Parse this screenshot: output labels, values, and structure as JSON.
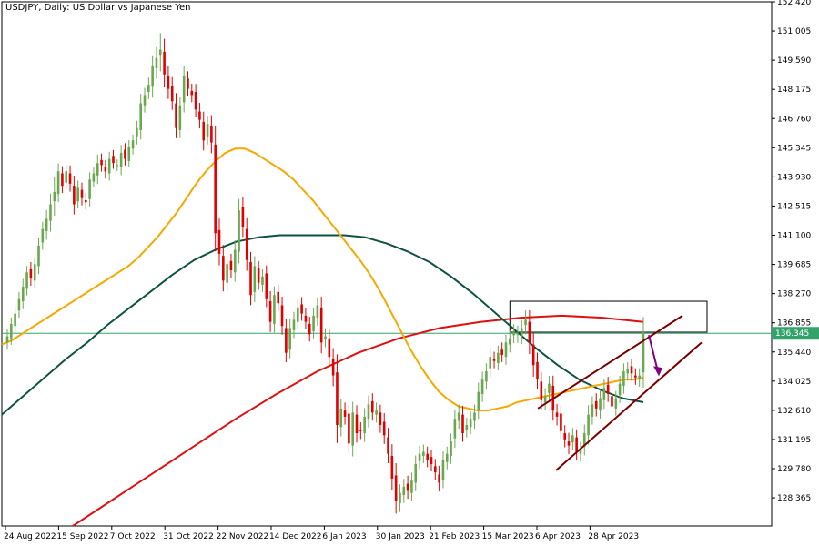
{
  "chart_data": {
    "type": "candlestick",
    "title": "USDJPY, Daily:  US Dollar vs Japanese Yen",
    "ylim": [
      127.0,
      152.42
    ],
    "y_ticks": [
      "152.420",
      "151.005",
      "149.590",
      "148.175",
      "146.760",
      "145.345",
      "143.930",
      "142.515",
      "141.100",
      "139.685",
      "138.270",
      "136.855",
      "135.440",
      "134.025",
      "132.610",
      "131.195",
      "129.780",
      "128.365"
    ],
    "x_ticks": [
      "24 Aug 2022",
      "15 Sep 2022",
      "7 Oct 2022",
      "31 Oct 2022",
      "22 Nov 2022",
      "14 Dec 2022",
      "6 Jan 2023",
      "30 Jan 2023",
      "21 Feb 2023",
      "15 Mar 2023",
      "6 Apr 2023",
      "28 Apr 2023"
    ],
    "current_price": "136.345",
    "horizontal_line_value": 136.345,
    "colors": {
      "bull": "#6aa84f",
      "bear": "#e00000",
      "ma_fast": "#f5a800",
      "ma_mid": "#0f5244",
      "ma_slow": "#dd1111",
      "hline": "#33a36b",
      "channel": "#7a0000",
      "arrow": "#800080",
      "box": "#000000"
    },
    "candles_close": [
      136.2,
      136.8,
      137.3,
      138.0,
      138.6,
      139.3,
      139.0,
      139.7,
      140.6,
      141.4,
      141.9,
      142.6,
      143.2,
      144.2,
      143.5,
      144.2,
      143.6,
      142.6,
      143.4,
      142.9,
      142.7,
      143.8,
      144.1,
      144.6,
      144.5,
      144.2,
      144.8,
      144.6,
      144.5,
      145.1,
      144.8,
      145.4,
      145.7,
      146.3,
      147.5,
      147.9,
      148.4,
      149.3,
      149.7,
      150.1,
      148.9,
      148.2,
      147.6,
      146.3,
      147.4,
      148.8,
      148.2,
      147.9,
      147.2,
      146.7,
      145.7,
      146.5,
      145.6,
      141.2,
      140.2,
      138.9,
      139.7,
      139.4,
      140.4,
      142.3,
      141.5,
      139.9,
      138.2,
      139.6,
      138.8,
      139.1,
      138.0,
      136.9,
      138.2,
      137.8,
      136.7,
      135.4,
      136.6,
      137.0,
      137.6,
      137.3,
      136.9,
      136.3,
      137.2,
      137.7,
      135.9,
      136.2,
      135.2,
      134.3,
      131.9,
      132.7,
      132.3,
      131.0,
      132.5,
      131.5,
      131.6,
      132.3,
      132.9,
      132.5,
      132.6,
      131.9,
      131.4,
      130.5,
      129.3,
      128.2,
      128.6,
      128.9,
      128.7,
      129.2,
      130.0,
      130.5,
      130.6,
      130.2,
      130.0,
      129.6,
      129.1,
      130.2,
      130.5,
      131.1,
      132.2,
      132.5,
      131.5,
      131.9,
      132.2,
      132.5,
      133.5,
      134.1,
      134.5,
      135.2,
      135.0,
      135.4,
      135.3,
      135.9,
      136.1,
      136.4,
      136.3,
      136.6,
      137.0,
      135.9,
      134.8,
      134.1,
      133.1,
      133.3,
      133.9,
      132.6,
      132.3,
      131.6,
      131.2,
      130.9,
      131.4,
      130.6,
      130.7,
      131.5,
      132.4,
      132.9,
      132.7,
      133.2,
      133.7,
      133.4,
      132.8,
      133.2,
      133.9,
      134.5,
      134.6,
      134.4,
      134.2,
      134.3,
      136.4
    ],
    "candles_range": [
      1.0,
      0.9,
      1.0,
      1.0,
      1.1,
      0.9,
      1.0,
      1.0,
      1.1,
      1.0,
      1.2,
      1.5,
      2.0,
      1.1,
      1.0,
      0.9,
      1.1,
      1.4,
      1.0,
      1.0,
      1.0,
      1.0,
      0.8,
      1.2,
      0.9,
      1.0,
      1.0,
      0.8,
      0.8,
      1.1,
      0.9,
      0.9,
      0.8,
      1.0,
      1.3,
      1.0,
      1.0,
      1.5,
      1.5,
      2.3,
      1.8,
      1.4,
      1.2,
      1.4,
      1.1,
      1.4,
      1.0,
      1.0,
      1.1,
      1.2,
      1.4,
      1.0,
      1.5,
      2.5,
      1.6,
      1.5,
      1.2,
      1.0,
      1.3,
      1.6,
      1.4,
      1.5,
      1.4,
      1.4,
      1.0,
      1.0,
      1.1,
      1.4,
      1.2,
      1.0,
      1.2,
      1.3,
      1.2,
      1.1,
      1.1,
      1.0,
      1.0,
      1.0,
      1.0,
      1.1,
      1.5,
      1.1,
      1.3,
      1.5,
      2.5,
      1.3,
      1.1,
      1.2,
      1.5,
      1.3,
      1.1,
      1.2,
      1.2,
      1.1,
      1.1,
      1.1,
      1.2,
      1.3,
      1.6,
      1.7,
      1.2,
      1.1,
      1.1,
      1.1,
      1.2,
      1.1,
      1.0,
      1.0,
      1.0,
      1.0,
      1.2,
      1.2,
      1.0,
      1.1,
      1.3,
      1.1,
      1.2,
      1.0,
      1.0,
      1.1,
      1.3,
      1.1,
      1.1,
      1.2,
      1.0,
      1.0,
      1.0,
      1.1,
      1.1,
      1.1,
      1.2,
      1.1,
      1.3,
      1.6,
      1.6,
      1.3,
      1.3,
      1.1,
      1.1,
      1.4,
      1.2,
      1.1,
      1.1,
      1.2,
      1.0,
      1.1,
      1.1,
      1.2,
      1.3,
      1.1,
      1.1,
      1.1,
      1.2,
      1.1,
      1.1,
      1.0,
      1.1,
      1.1,
      1.0,
      1.0,
      1.0,
      1.0,
      2.1
    ],
    "ma_fast": [
      135.8,
      136.0,
      136.3,
      136.6,
      136.9,
      137.2,
      137.5,
      137.8,
      138.1,
      138.4,
      138.7,
      139.0,
      139.3,
      139.6,
      140.0,
      140.5,
      141.0,
      141.6,
      142.2,
      142.9,
      143.6,
      144.2,
      144.7,
      145.1,
      145.3,
      145.3,
      145.1,
      144.8,
      144.5,
      144.2,
      143.8,
      143.3,
      142.8,
      142.2,
      141.6,
      141.0,
      140.4,
      139.8,
      139.1,
      138.3,
      137.4,
      136.5,
      135.6,
      134.8,
      134.1,
      133.5,
      133.1,
      132.8,
      132.7,
      132.6,
      132.6,
      132.7,
      132.8,
      133.0,
      133.1,
      133.2,
      133.3,
      133.4,
      133.5,
      133.6,
      133.7,
      133.8,
      133.9,
      134.0,
      134.1,
      134.1,
      134.2
    ],
    "ma_fast_x": [
      0,
      4,
      8,
      12,
      16,
      20,
      24,
      28,
      32,
      36,
      40,
      44,
      48,
      52,
      56,
      60,
      64,
      68,
      72,
      76,
      80,
      84,
      88,
      92,
      96,
      100,
      104,
      108,
      112,
      116,
      120,
      124,
      128,
      132,
      136,
      140,
      144,
      148,
      152,
      156,
      160,
      164,
      168,
      172,
      176,
      180,
      184,
      188,
      192,
      196,
      200,
      204,
      208,
      212,
      216,
      220,
      224,
      228,
      232,
      236,
      240,
      244,
      248,
      252,
      256,
      260,
      264
    ],
    "ma_mid": [
      132.4,
      133.3,
      134.2,
      135.1,
      135.9,
      136.8,
      137.6,
      138.4,
      139.2,
      139.9,
      140.4,
      140.8,
      141.0,
      141.1,
      141.1,
      141.1,
      141.1,
      141.0,
      140.7,
      140.3,
      139.8,
      139.1,
      138.3,
      137.4,
      136.5,
      135.6,
      134.8,
      134.1,
      133.6,
      133.2,
      133.0
    ],
    "ma_mid_x": [
      0,
      8,
      16,
      24,
      32,
      40,
      48,
      56,
      64,
      72,
      80,
      88,
      96,
      104,
      112,
      120,
      128,
      136,
      144,
      152,
      160,
      168,
      176,
      184,
      192,
      200,
      208,
      216,
      224,
      232,
      240
    ],
    "ma_slow": [
      127.0,
      128.3,
      129.6,
      130.9,
      132.2,
      133.4,
      134.5,
      135.4,
      136.1,
      136.6,
      136.9,
      137.1,
      137.2,
      137.1,
      136.9
    ],
    "ma_slow_x": [
      0,
      10,
      20,
      30,
      40,
      50,
      60,
      70,
      80,
      90,
      100,
      110,
      120,
      130,
      140
    ],
    "channel_upper": [
      [
        0,
        132.7
      ],
      [
        1,
        137.2
      ]
    ],
    "channel_lower": [
      [
        0,
        129.7
      ],
      [
        1,
        135.9
      ]
    ],
    "box_range": [
      136.4,
      137.9
    ]
  }
}
